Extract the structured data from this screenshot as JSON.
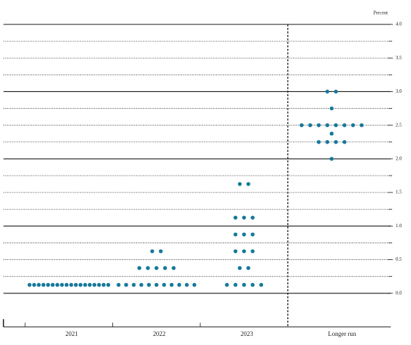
{
  "chart_data": {
    "type": "dot",
    "y_label": "Percent",
    "categories": [
      "2021",
      "2022",
      "2023",
      "Longer run"
    ],
    "color": "#16799b",
    "values": [
      [
        0.125,
        0.125,
        0.125,
        0.125,
        0.125,
        0.125,
        0.125,
        0.125,
        0.125,
        0.125,
        0.125,
        0.125,
        0.125,
        0.125,
        0.125,
        0.125,
        0.125,
        0.125
      ],
      [
        0.125,
        0.125,
        0.125,
        0.125,
        0.125,
        0.125,
        0.125,
        0.125,
        0.125,
        0.125,
        0.125,
        0.375,
        0.375,
        0.375,
        0.375,
        0.375,
        0.625,
        0.625
      ],
      [
        0.125,
        0.125,
        0.125,
        0.125,
        0.125,
        0.375,
        0.375,
        0.625,
        0.625,
        0.625,
        0.875,
        0.875,
        0.875,
        1.125,
        1.125,
        1.125,
        1.625,
        1.625
      ],
      [
        2.0,
        2.25,
        2.25,
        2.25,
        2.25,
        2.375,
        2.5,
        2.5,
        2.5,
        2.5,
        2.5,
        2.5,
        2.5,
        2.5,
        2.75,
        3.0,
        3.0
      ]
    ],
    "ylim": [
      -0.5,
      4.0
    ],
    "yticks": [
      {
        "value": 0,
        "label": "0.0"
      },
      0.5,
      {
        "value": 1,
        "label": "1.0"
      },
      1.5,
      {
        "value": 2,
        "label": "2.0"
      },
      2.5,
      {
        "value": 3,
        "label": "3.0"
      },
      3.5,
      {
        "value": 4,
        "label": "4.0"
      }
    ],
    "minor_yticks": [
      0.25,
      0.75,
      1.25,
      1.75,
      2.25,
      2.75,
      3.25,
      3.75
    ],
    "grid": true
  }
}
